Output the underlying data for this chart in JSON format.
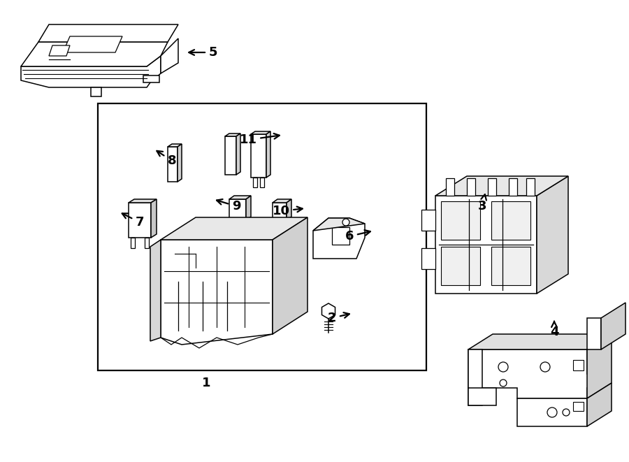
{
  "bg_color": "#ffffff",
  "line_color": "#000000",
  "fig_width": 9.0,
  "fig_height": 6.61,
  "dpi": 100,
  "lw": 1.1,
  "fontsize_label": 13
}
